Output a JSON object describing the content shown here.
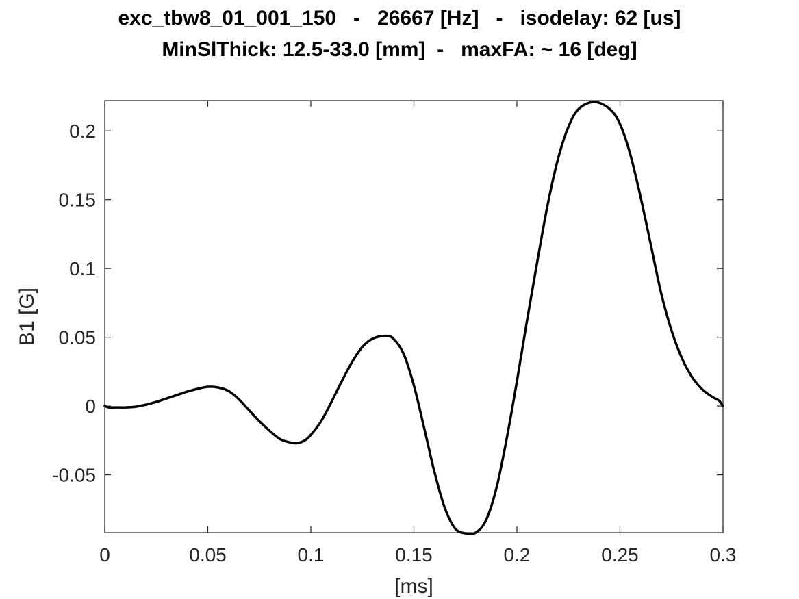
{
  "chart_data": {
    "type": "line",
    "title": [
      "exc_tbw8_01_001_150   -   26667 [Hz]   -   isodelay: 62 [us]",
      "MinSlThick: 12.5-33.0 [mm]  -   maxFA: ~ 16 [deg]"
    ],
    "xlabel": "[ms]",
    "ylabel": "B1 [G]",
    "xlim": [
      0,
      0.3
    ],
    "ylim": [
      -0.092,
      0.222
    ],
    "xticks": [
      0,
      0.05,
      0.1,
      0.15,
      0.2,
      0.25,
      0.3
    ],
    "xtick_labels": [
      "0",
      "0.05",
      "0.1",
      "0.15",
      "0.2",
      "0.25",
      "0.3"
    ],
    "yticks": [
      -0.05,
      0,
      0.05,
      0.1,
      0.15,
      0.2
    ],
    "ytick_labels": [
      "-0.05",
      "0",
      "0.05",
      "0.1",
      "0.15",
      "0.2"
    ],
    "grid": false,
    "series": [
      {
        "color": "#000000",
        "x": [
          0,
          0.002,
          0.005,
          0.01,
          0.015,
          0.02,
          0.025,
          0.03,
          0.035,
          0.04,
          0.045,
          0.05,
          0.055,
          0.06,
          0.065,
          0.07,
          0.075,
          0.08,
          0.085,
          0.09,
          0.0935,
          0.097,
          0.1,
          0.105,
          0.11,
          0.115,
          0.12,
          0.125,
          0.13,
          0.136,
          0.14,
          0.145,
          0.15,
          0.155,
          0.16,
          0.165,
          0.17,
          0.175,
          0.18,
          0.185,
          0.19,
          0.195,
          0.2,
          0.205,
          0.21,
          0.215,
          0.22,
          0.225,
          0.23,
          0.2375,
          0.245,
          0.25,
          0.255,
          0.26,
          0.265,
          0.27,
          0.275,
          0.28,
          0.285,
          0.29,
          0.295,
          0.298,
          0.3
        ],
        "y": [
          0,
          -0.001,
          -0.001,
          -0.001,
          -0.0005,
          0.001,
          0.003,
          0.0055,
          0.008,
          0.0105,
          0.0125,
          0.014,
          0.0135,
          0.011,
          0.005,
          -0.003,
          -0.011,
          -0.018,
          -0.024,
          -0.0265,
          -0.027,
          -0.025,
          -0.021,
          -0.011,
          0.003,
          0.018,
          0.032,
          0.043,
          0.049,
          0.051,
          0.049,
          0.038,
          0.015,
          -0.016,
          -0.048,
          -0.074,
          -0.089,
          -0.0925,
          -0.092,
          -0.083,
          -0.06,
          -0.024,
          0.018,
          0.063,
          0.106,
          0.147,
          0.18,
          0.203,
          0.216,
          0.221,
          0.216,
          0.205,
          0.183,
          0.152,
          0.117,
          0.082,
          0.055,
          0.035,
          0.021,
          0.012,
          0.0065,
          0.004,
          0
        ]
      }
    ]
  }
}
